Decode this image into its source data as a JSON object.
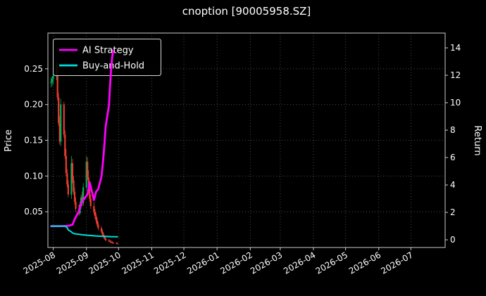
{
  "window": {
    "title": "cnoption [90005958.SZ]"
  },
  "figure": {
    "background": "#000000",
    "text_color": "#ffffff",
    "grid_color": "#ffffff",
    "spine_color": "#cccccc"
  },
  "legend": {
    "position": "upper-left",
    "items": [
      {
        "label": "AI Strategy",
        "color": "#ff00ff"
      },
      {
        "label": "Buy-and-Hold",
        "color": "#00dddd"
      }
    ]
  },
  "chart_data": {
    "type": "candlestick+line",
    "title": "cnoption [90005958.SZ]",
    "xlabel": "",
    "grid": true,
    "legend_position": "upper-left",
    "x_range": [
      "2025-07-27",
      "2026-08-02"
    ],
    "x_ticks": [
      "2025-08",
      "2025-09",
      "2025-10",
      "2025-11",
      "2025-12",
      "2026-01",
      "2026-02",
      "2026-03",
      "2026-04",
      "2026-05",
      "2026-06",
      "2026-07"
    ],
    "left_axis": {
      "label": "Price",
      "ticks": [
        0.05,
        0.1,
        0.15,
        0.2,
        0.25
      ],
      "range": [
        0,
        0.3
      ]
    },
    "right_axis": {
      "label": "Return",
      "ticks": [
        0,
        2,
        4,
        6,
        8,
        10,
        12,
        14
      ],
      "range": [
        -0.56,
        15.08
      ]
    },
    "candles": {
      "up_color": "#00b060",
      "down_color": "#eb3d2f",
      "columns": [
        "date",
        "open",
        "high",
        "low",
        "close"
      ],
      "data": [
        [
          "2025-07-30",
          0.23,
          0.238,
          0.224,
          0.232
        ],
        [
          "2025-07-31",
          0.232,
          0.24,
          0.226,
          0.236
        ],
        [
          "2025-08-01",
          0.236,
          0.244,
          0.228,
          0.24
        ],
        [
          "2025-08-04",
          0.24,
          0.262,
          0.234,
          0.256
        ],
        [
          "2025-08-05",
          0.256,
          0.26,
          0.206,
          0.21
        ],
        [
          "2025-08-06",
          0.21,
          0.216,
          0.17,
          0.174
        ],
        [
          "2025-08-07",
          0.174,
          0.184,
          0.144,
          0.148
        ],
        [
          "2025-08-08",
          0.148,
          0.208,
          0.142,
          0.2
        ],
        [
          "2025-08-11",
          0.2,
          0.204,
          0.154,
          0.158
        ],
        [
          "2025-08-12",
          0.158,
          0.164,
          0.124,
          0.128
        ],
        [
          "2025-08-13",
          0.128,
          0.138,
          0.1,
          0.104
        ],
        [
          "2025-08-14",
          0.104,
          0.11,
          0.084,
          0.088
        ],
        [
          "2025-08-15",
          0.088,
          0.094,
          0.07,
          0.074
        ],
        [
          "2025-08-18",
          0.074,
          0.128,
          0.068,
          0.118
        ],
        [
          "2025-08-19",
          0.118,
          0.124,
          0.09,
          0.094
        ],
        [
          "2025-08-20",
          0.094,
          0.1,
          0.074,
          0.078
        ],
        [
          "2025-08-21",
          0.078,
          0.084,
          0.06,
          0.064
        ],
        [
          "2025-08-22",
          0.064,
          0.07,
          0.05,
          0.054
        ],
        [
          "2025-08-25",
          0.054,
          0.06,
          0.044,
          0.048
        ],
        [
          "2025-08-26",
          0.048,
          0.064,
          0.046,
          0.06
        ],
        [
          "2025-08-27",
          0.06,
          0.074,
          0.054,
          0.07
        ],
        [
          "2025-08-28",
          0.07,
          0.078,
          0.058,
          0.062
        ],
        [
          "2025-08-29",
          0.062,
          0.09,
          0.058,
          0.084
        ],
        [
          "2025-09-01",
          0.084,
          0.128,
          0.08,
          0.12
        ],
        [
          "2025-09-02",
          0.12,
          0.126,
          0.094,
          0.098
        ],
        [
          "2025-09-03",
          0.098,
          0.108,
          0.078,
          0.082
        ],
        [
          "2025-09-04",
          0.082,
          0.088,
          0.064,
          0.068
        ],
        [
          "2025-09-05",
          0.068,
          0.074,
          0.054,
          0.058
        ],
        [
          "2025-09-08",
          0.058,
          0.064,
          0.046,
          0.05
        ],
        [
          "2025-09-09",
          0.05,
          0.054,
          0.04,
          0.044
        ],
        [
          "2025-09-10",
          0.044,
          0.048,
          0.034,
          0.038
        ],
        [
          "2025-09-11",
          0.038,
          0.042,
          0.029,
          0.032
        ],
        [
          "2025-09-12",
          0.032,
          0.036,
          0.024,
          0.027
        ],
        [
          "2025-09-15",
          0.027,
          0.03,
          0.02,
          0.022
        ],
        [
          "2025-09-16",
          0.022,
          0.025,
          0.016,
          0.018
        ],
        [
          "2025-09-17",
          0.018,
          0.021,
          0.013,
          0.015
        ],
        [
          "2025-09-18",
          0.015,
          0.017,
          0.011,
          0.012
        ],
        [
          "2025-09-19",
          0.012,
          0.014,
          0.009,
          0.01
        ],
        [
          "2025-09-22",
          0.01,
          0.012,
          0.008,
          0.009
        ],
        [
          "2025-09-23",
          0.009,
          0.011,
          0.007,
          0.008
        ],
        [
          "2025-09-24",
          0.008,
          0.01,
          0.006,
          0.007
        ],
        [
          "2025-09-25",
          0.007,
          0.009,
          0.006,
          0.0065
        ],
        [
          "2025-09-26",
          0.0065,
          0.008,
          0.005,
          0.006
        ],
        [
          "2025-09-29",
          0.006,
          0.0075,
          0.005,
          0.0055
        ],
        [
          "2025-09-30",
          0.0055,
          0.007,
          0.0045,
          0.005
        ]
      ]
    },
    "series": [
      {
        "name": "AI Strategy",
        "color": "#ff00ff",
        "axis": "right",
        "width": 2.8,
        "points": [
          [
            "2025-07-30",
            1.0
          ],
          [
            "2025-08-08",
            1.0
          ],
          [
            "2025-08-15",
            1.02
          ],
          [
            "2025-08-19",
            1.1
          ],
          [
            "2025-08-21",
            1.5
          ],
          [
            "2025-08-25",
            2.1
          ],
          [
            "2025-08-27",
            2.6
          ],
          [
            "2025-08-29",
            2.9
          ],
          [
            "2025-09-02",
            3.3
          ],
          [
            "2025-09-04",
            4.2
          ],
          [
            "2025-09-08",
            2.9
          ],
          [
            "2025-09-10",
            3.5
          ],
          [
            "2025-09-12",
            3.7
          ],
          [
            "2025-09-15",
            4.6
          ],
          [
            "2025-09-16",
            5.3
          ],
          [
            "2025-09-17",
            6.2
          ],
          [
            "2025-09-18",
            7.2
          ],
          [
            "2025-09-19",
            8.3
          ],
          [
            "2025-09-22",
            9.8
          ],
          [
            "2025-09-23",
            11.2
          ],
          [
            "2025-09-24",
            12.4
          ],
          [
            "2025-09-25",
            13.3
          ],
          [
            "2025-09-26",
            13.8
          ]
        ]
      },
      {
        "name": "Buy-and-Hold",
        "color": "#00dddd",
        "axis": "right",
        "width": 2,
        "points": [
          [
            "2025-07-30",
            1.0
          ],
          [
            "2025-08-12",
            1.0
          ],
          [
            "2025-08-13",
            0.95
          ],
          [
            "2025-08-14",
            0.88
          ],
          [
            "2025-08-15",
            0.72
          ],
          [
            "2025-08-18",
            0.58
          ],
          [
            "2025-08-19",
            0.5
          ],
          [
            "2025-08-21",
            0.44
          ],
          [
            "2025-08-25",
            0.4
          ],
          [
            "2025-08-28",
            0.37
          ],
          [
            "2025-09-02",
            0.33
          ],
          [
            "2025-09-05",
            0.31
          ],
          [
            "2025-09-10",
            0.28
          ],
          [
            "2025-09-15",
            0.26
          ],
          [
            "2025-09-19",
            0.25
          ],
          [
            "2025-09-24",
            0.23
          ],
          [
            "2025-09-30",
            0.22
          ]
        ]
      }
    ]
  }
}
